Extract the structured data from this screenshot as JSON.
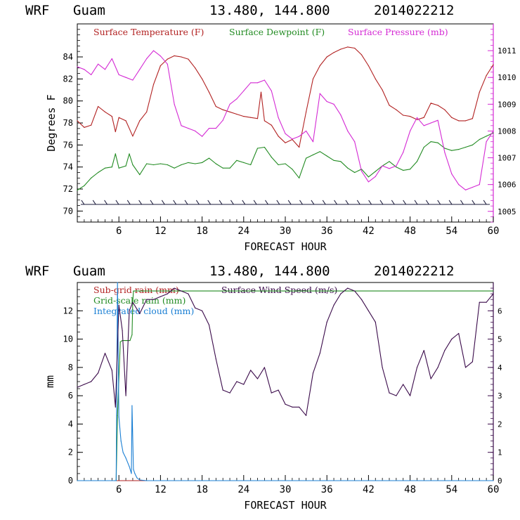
{
  "chart_data": [
    {
      "type": "line",
      "title": {
        "model": "WRF",
        "location": "Guam",
        "coords": "13.480, 144.800",
        "init": "2014022212"
      },
      "xlabel": "FORECAST HOUR",
      "ylabel": "Degrees F",
      "y2label": "Surface Pressure (mb)",
      "xlim": [
        0,
        60
      ],
      "ylim": [
        69,
        87
      ],
      "y2lim": [
        1004.6,
        1012.0
      ],
      "x_ticks": [
        "6",
        "12",
        "18",
        "24",
        "30",
        "36",
        "42",
        "48",
        "54",
        "60"
      ],
      "y_ticks": [
        "70",
        "72",
        "74",
        "76",
        "78",
        "80",
        "82",
        "84"
      ],
      "y2_ticks": [
        "1005",
        "1006",
        "1007",
        "1008",
        "1009",
        "1010",
        "1011"
      ],
      "series": [
        {
          "name": "Surface Temperature (F)",
          "color": "#b22222",
          "axis": "left",
          "x": [
            0,
            1,
            2,
            3,
            4,
            5,
            5.5,
            6,
            7,
            8,
            9,
            10,
            11,
            12,
            13,
            14,
            15,
            16,
            17,
            18,
            19,
            20,
            21,
            22,
            23,
            24,
            25,
            26,
            26.5,
            27,
            28,
            29,
            30,
            31,
            32,
            33,
            34,
            35,
            36,
            37,
            38,
            39,
            40,
            41,
            42,
            43,
            44,
            45,
            46,
            47,
            48,
            49,
            50,
            51,
            52,
            53,
            54,
            55,
            56,
            57,
            58,
            59,
            60
          ],
          "y": [
            78.2,
            77.6,
            77.8,
            79.5,
            79,
            78.6,
            77.2,
            78.5,
            78.2,
            76.8,
            78.2,
            79,
            81.5,
            83.2,
            83.8,
            84.1,
            84,
            83.8,
            83,
            82,
            80.8,
            79.5,
            79.2,
            79,
            78.8,
            78.6,
            78.5,
            78.4,
            80.8,
            78.2,
            77.8,
            76.8,
            76.2,
            76.5,
            75.8,
            79,
            82,
            83.2,
            84,
            84.4,
            84.7,
            84.9,
            84.8,
            84.2,
            83.2,
            82,
            81,
            79.6,
            79.2,
            78.7,
            78.6,
            78.3,
            78.5,
            79.8,
            79.6,
            79.2,
            78.5,
            78.2,
            78.2,
            78.4,
            80.8,
            82.3,
            83.3
          ]
        },
        {
          "name": "Surface Dewpoint (F)",
          "color": "#228b22",
          "axis": "left",
          "x": [
            0,
            1,
            2,
            3,
            4,
            5,
            5.5,
            6,
            7,
            7.5,
            8,
            9,
            10,
            11,
            12,
            13,
            14,
            15,
            16,
            17,
            18,
            19,
            20,
            21,
            22,
            23,
            24,
            25,
            26,
            27,
            28,
            29,
            30,
            31,
            32,
            33,
            34,
            35,
            36,
            37,
            38,
            39,
            40,
            41,
            42,
            43,
            44,
            45,
            46,
            47,
            48,
            49,
            50,
            51,
            52,
            53,
            54,
            55,
            56,
            57,
            58,
            59,
            60
          ],
          "y": [
            71.9,
            72.3,
            73,
            73.5,
            73.9,
            74,
            75.2,
            73.9,
            74.1,
            75.2,
            74.2,
            73.3,
            74.3,
            74.2,
            74.3,
            74.2,
            73.9,
            74.2,
            74.4,
            74.3,
            74.4,
            74.8,
            74.3,
            73.9,
            73.9,
            74.6,
            74.4,
            74.2,
            75.7,
            75.8,
            74.9,
            74.2,
            74.3,
            73.8,
            73,
            74.8,
            75.1,
            75.4,
            75,
            74.6,
            74.5,
            73.9,
            73.5,
            73.8,
            73.1,
            73.6,
            74.1,
            74.5,
            74,
            73.7,
            73.8,
            74.5,
            75.8,
            76.3,
            76.2,
            75.7,
            75.5,
            75.6,
            75.8,
            76,
            76.5,
            76.8,
            77.1
          ]
        },
        {
          "name": "Surface Pressure (mb)",
          "color": "#d42ad4",
          "axis": "right",
          "x": [
            0,
            1,
            2,
            3,
            4,
            5,
            6,
            7,
            8,
            9,
            10,
            11,
            12,
            13,
            14,
            15,
            16,
            17,
            18,
            19,
            20,
            21,
            22,
            23,
            24,
            25,
            26,
            27,
            28,
            29,
            30,
            31,
            32,
            33,
            34,
            35,
            36,
            37,
            38,
            39,
            40,
            41,
            42,
            43,
            44,
            45,
            46,
            47,
            48,
            49,
            50,
            51,
            52,
            53,
            54,
            55,
            56,
            57,
            58,
            59,
            60
          ],
          "y": [
            1010.4,
            1010.3,
            1010.1,
            1010.5,
            1010.3,
            1010.7,
            1010.1,
            1010.0,
            1009.9,
            1010.3,
            1010.7,
            1011.0,
            1010.8,
            1010.5,
            1009.0,
            1008.2,
            1008.1,
            1008.0,
            1007.8,
            1008.1,
            1008.1,
            1008.4,
            1009.0,
            1009.2,
            1009.5,
            1009.8,
            1009.8,
            1009.9,
            1009.5,
            1008.5,
            1007.9,
            1007.7,
            1007.8,
            1008.0,
            1007.6,
            1009.4,
            1009.1,
            1009.0,
            1008.6,
            1008.0,
            1007.6,
            1006.5,
            1006.1,
            1006.3,
            1006.7,
            1006.6,
            1006.7,
            1007.2,
            1008.0,
            1008.5,
            1008.2,
            1008.3,
            1008.4,
            1007.2,
            1006.4,
            1006.0,
            1005.8,
            1005.9,
            1006.0,
            1007.6,
            1008.0
          ]
        }
      ],
      "wind_barbs": {
        "count": 36,
        "y": 70.6
      }
    },
    {
      "type": "line",
      "title": {
        "model": "WRF",
        "location": "Guam",
        "coords": "13.480, 144.800",
        "init": "2014022212"
      },
      "xlabel": "FORECAST HOUR",
      "ylabel": "mm",
      "xlim": [
        0,
        60
      ],
      "ylim": [
        0,
        14
      ],
      "y2lim": [
        0,
        7
      ],
      "x_ticks": [
        "6",
        "12",
        "18",
        "24",
        "30",
        "36",
        "42",
        "48",
        "54",
        "60"
      ],
      "y_ticks": [
        "0",
        "2",
        "4",
        "6",
        "8",
        "10",
        "12"
      ],
      "y2_ticks": [
        "0",
        "1",
        "2",
        "3",
        "4",
        "5",
        "6"
      ],
      "series": [
        {
          "name": "Sub-grid rain (mm)",
          "color": "#b22222",
          "axis": "left",
          "x": [
            0,
            60
          ],
          "y": [
            0,
            0
          ]
        },
        {
          "name": "Grid-scale rain (mm)",
          "color": "#228b22",
          "axis": "left",
          "x": [
            0,
            5.6,
            5.8,
            6.2,
            6.5,
            7.0,
            7.4,
            7.6,
            7.9,
            8.0,
            8.1,
            8.3,
            60
          ],
          "y": [
            0,
            0,
            4.6,
            9.8,
            9.9,
            9.9,
            9.9,
            9.9,
            10.3,
            12.6,
            13.4,
            13.4,
            13.4
          ]
        },
        {
          "name": "Integrated cloud (mm)",
          "color": "#1a7fd4",
          "axis": "left",
          "x": [
            0,
            5.4,
            5.6,
            5.8,
            6.0,
            6.3,
            6.6,
            7.0,
            7.5,
            7.8,
            7.9,
            8.1,
            8.3,
            8.6,
            9.0,
            10,
            60
          ],
          "y": [
            0,
            0,
            0,
            14,
            4.5,
            2.8,
            2.0,
            1.6,
            1.0,
            0.5,
            5.3,
            0.8,
            0.5,
            0.2,
            0.05,
            0,
            0
          ]
        },
        {
          "name": "Surface Wind Speed (m/s)",
          "color": "#3a0a4a",
          "axis": "right",
          "x": [
            0,
            1,
            2,
            3,
            4,
            5,
            5.5,
            6,
            6.5,
            7,
            7.5,
            8,
            9,
            10,
            11,
            12,
            13,
            14,
            15,
            16,
            17,
            18,
            19,
            20,
            21,
            22,
            23,
            24,
            25,
            26,
            27,
            28,
            29,
            30,
            31,
            32,
            33,
            34,
            35,
            36,
            37,
            38,
            39,
            40,
            41,
            42,
            43,
            44,
            45,
            46,
            47,
            48,
            49,
            50,
            51,
            52,
            53,
            54,
            55,
            56,
            57,
            58,
            59,
            60
          ],
          "y": [
            3.3,
            3.4,
            3.5,
            3.8,
            4.5,
            3.9,
            2.6,
            6.2,
            5.3,
            3.0,
            6.0,
            6.3,
            5.9,
            6.4,
            6.4,
            6.5,
            6.6,
            6.8,
            6.7,
            6.6,
            6.1,
            6.0,
            5.5,
            4.3,
            3.2,
            3.1,
            3.5,
            3.4,
            3.9,
            3.6,
            4.0,
            3.1,
            3.2,
            2.7,
            2.6,
            2.6,
            2.3,
            3.8,
            4.5,
            5.6,
            6.2,
            6.6,
            6.8,
            6.7,
            6.4,
            6.0,
            5.6,
            4.0,
            3.1,
            3.0,
            3.4,
            3.0,
            4.0,
            4.6,
            3.6,
            4.0,
            4.6,
            5.0,
            5.2,
            4.0,
            4.2,
            6.3,
            6.3,
            6.6
          ]
        }
      ]
    }
  ]
}
